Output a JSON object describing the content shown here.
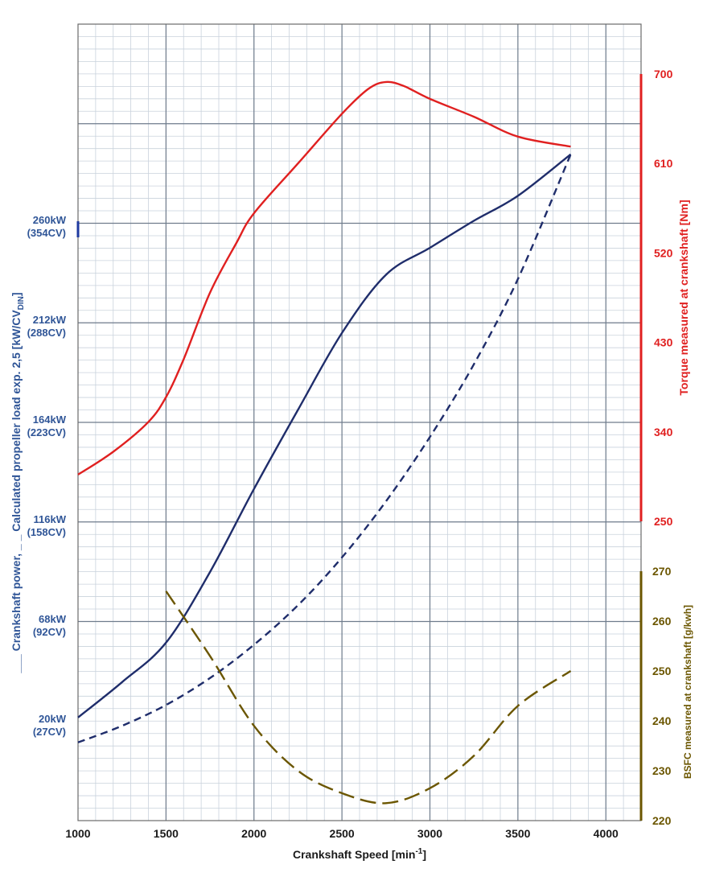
{
  "chart_data": {
    "type": "line",
    "xlabel": "Crankshaft Speed [min-1]",
    "xlabel_main": "Crankshaft Speed [min",
    "xlabel_sup": "-1",
    "xlabel_end": "]",
    "xlim": [
      1000,
      4200
    ],
    "x_ticks": [
      1000,
      1500,
      2000,
      2500,
      3000,
      3500,
      4000
    ],
    "grid": true,
    "left_axis": {
      "label": "___ Crankshaft power, _ _ Calculated propeller load exp. 2,5 [kW/CV DIN]",
      "label_main": "___ Crankshaft power, _ _ Calculated propeller load exp. 2,5  [kW/CV",
      "label_sub": "DIN",
      "label_end": "]",
      "ticks": [
        {
          "value": 20,
          "kw": "20kW",
          "cv": "(27CV)"
        },
        {
          "value": 68,
          "kw": "68kW",
          "cv": "(92CV)"
        },
        {
          "value": 116,
          "kw": "116kW",
          "cv": "(158CV)"
        },
        {
          "value": 164,
          "kw": "164kW",
          "cv": "(223CV)"
        },
        {
          "value": 212,
          "kw": "212kW",
          "cv": "(288CV)"
        },
        {
          "value": 260,
          "kw": "260kW",
          "cv": "(354CV)"
        }
      ],
      "color": "#2f5597"
    },
    "torque_axis": {
      "label": "Torque measured at crankshaft [Nm]",
      "ticks": [
        250,
        340,
        430,
        520,
        610,
        700
      ],
      "ylim": [
        250,
        700
      ],
      "color": "#e02020"
    },
    "bsfc_axis": {
      "label": "BSFC measured  at crankshaft [g/kwh]",
      "ticks": [
        220,
        230,
        240,
        250,
        260,
        270
      ],
      "ylim": [
        220,
        270
      ],
      "color": "#6b5600"
    },
    "series": [
      {
        "axis": "power",
        "style": "solid",
        "color": "#1f2d6b",
        "x": [
          1000,
          1250,
          1500,
          1750,
          2000,
          2250,
          2500,
          2750,
          3000,
          3250,
          3500,
          3800
        ],
        "y": [
          22,
          39,
          58,
          92,
          132,
          170,
          207,
          235,
          248,
          261,
          273,
          293
        ]
      },
      {
        "axis": "power",
        "style": "dash",
        "color": "#1f2d6b",
        "x": [
          1000,
          1250,
          1500,
          1750,
          2000,
          2250,
          2500,
          2750,
          3000,
          3250,
          3500,
          3800
        ],
        "y": [
          10,
          18,
          28,
          41,
          57,
          76,
          99,
          126,
          157,
          192,
          233,
          293
        ]
      },
      {
        "axis": "torque",
        "style": "solid",
        "color": "#e02020",
        "x": [
          1000,
          1200,
          1400,
          1500,
          1600,
          1750,
          1900,
          2000,
          2250,
          2500,
          2650,
          2750,
          2850,
          3000,
          3250,
          3500,
          3800
        ],
        "y": [
          297,
          320,
          350,
          375,
          413,
          480,
          530,
          560,
          610,
          660,
          685,
          692,
          688,
          675,
          657,
          637,
          627
        ]
      },
      {
        "axis": "bsfc",
        "style": "longdash",
        "color": "#6b5600",
        "x": [
          1500,
          1750,
          2000,
          2250,
          2500,
          2750,
          3000,
          3250,
          3500,
          3800
        ],
        "y": [
          266,
          253,
          239,
          230,
          225.5,
          223.5,
          226.5,
          233,
          243,
          250
        ]
      }
    ]
  }
}
